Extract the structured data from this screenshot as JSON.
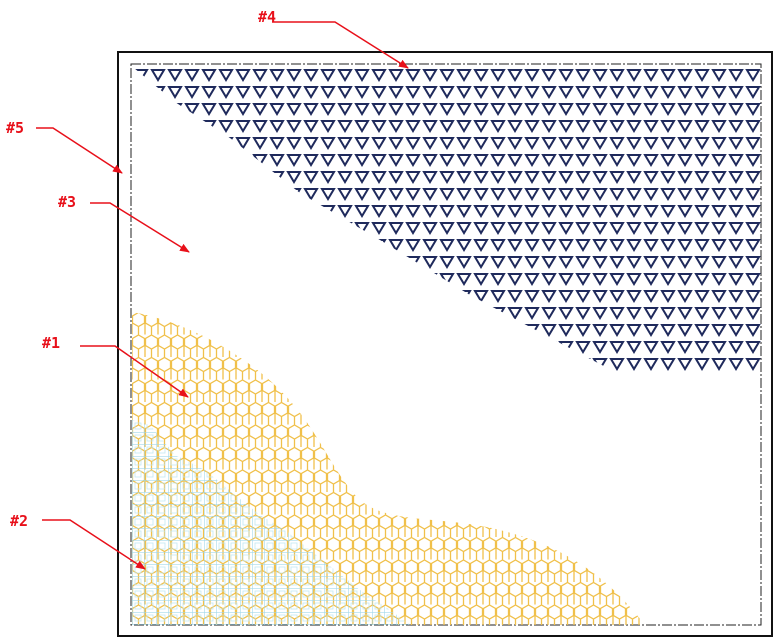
{
  "callouts": [
    {
      "id": "1",
      "label": "#1"
    },
    {
      "id": "2",
      "label": "#2"
    },
    {
      "id": "3",
      "label": "#3"
    },
    {
      "id": "4",
      "label": "#4"
    },
    {
      "id": "5",
      "label": "#5"
    }
  ],
  "colors": {
    "callout": "#e8101a",
    "frame": "#111111",
    "region_1_hex": "#f0c04a",
    "region_2_grid": "#9fd6ea",
    "region_4_triangles": "#1f2a5c"
  }
}
